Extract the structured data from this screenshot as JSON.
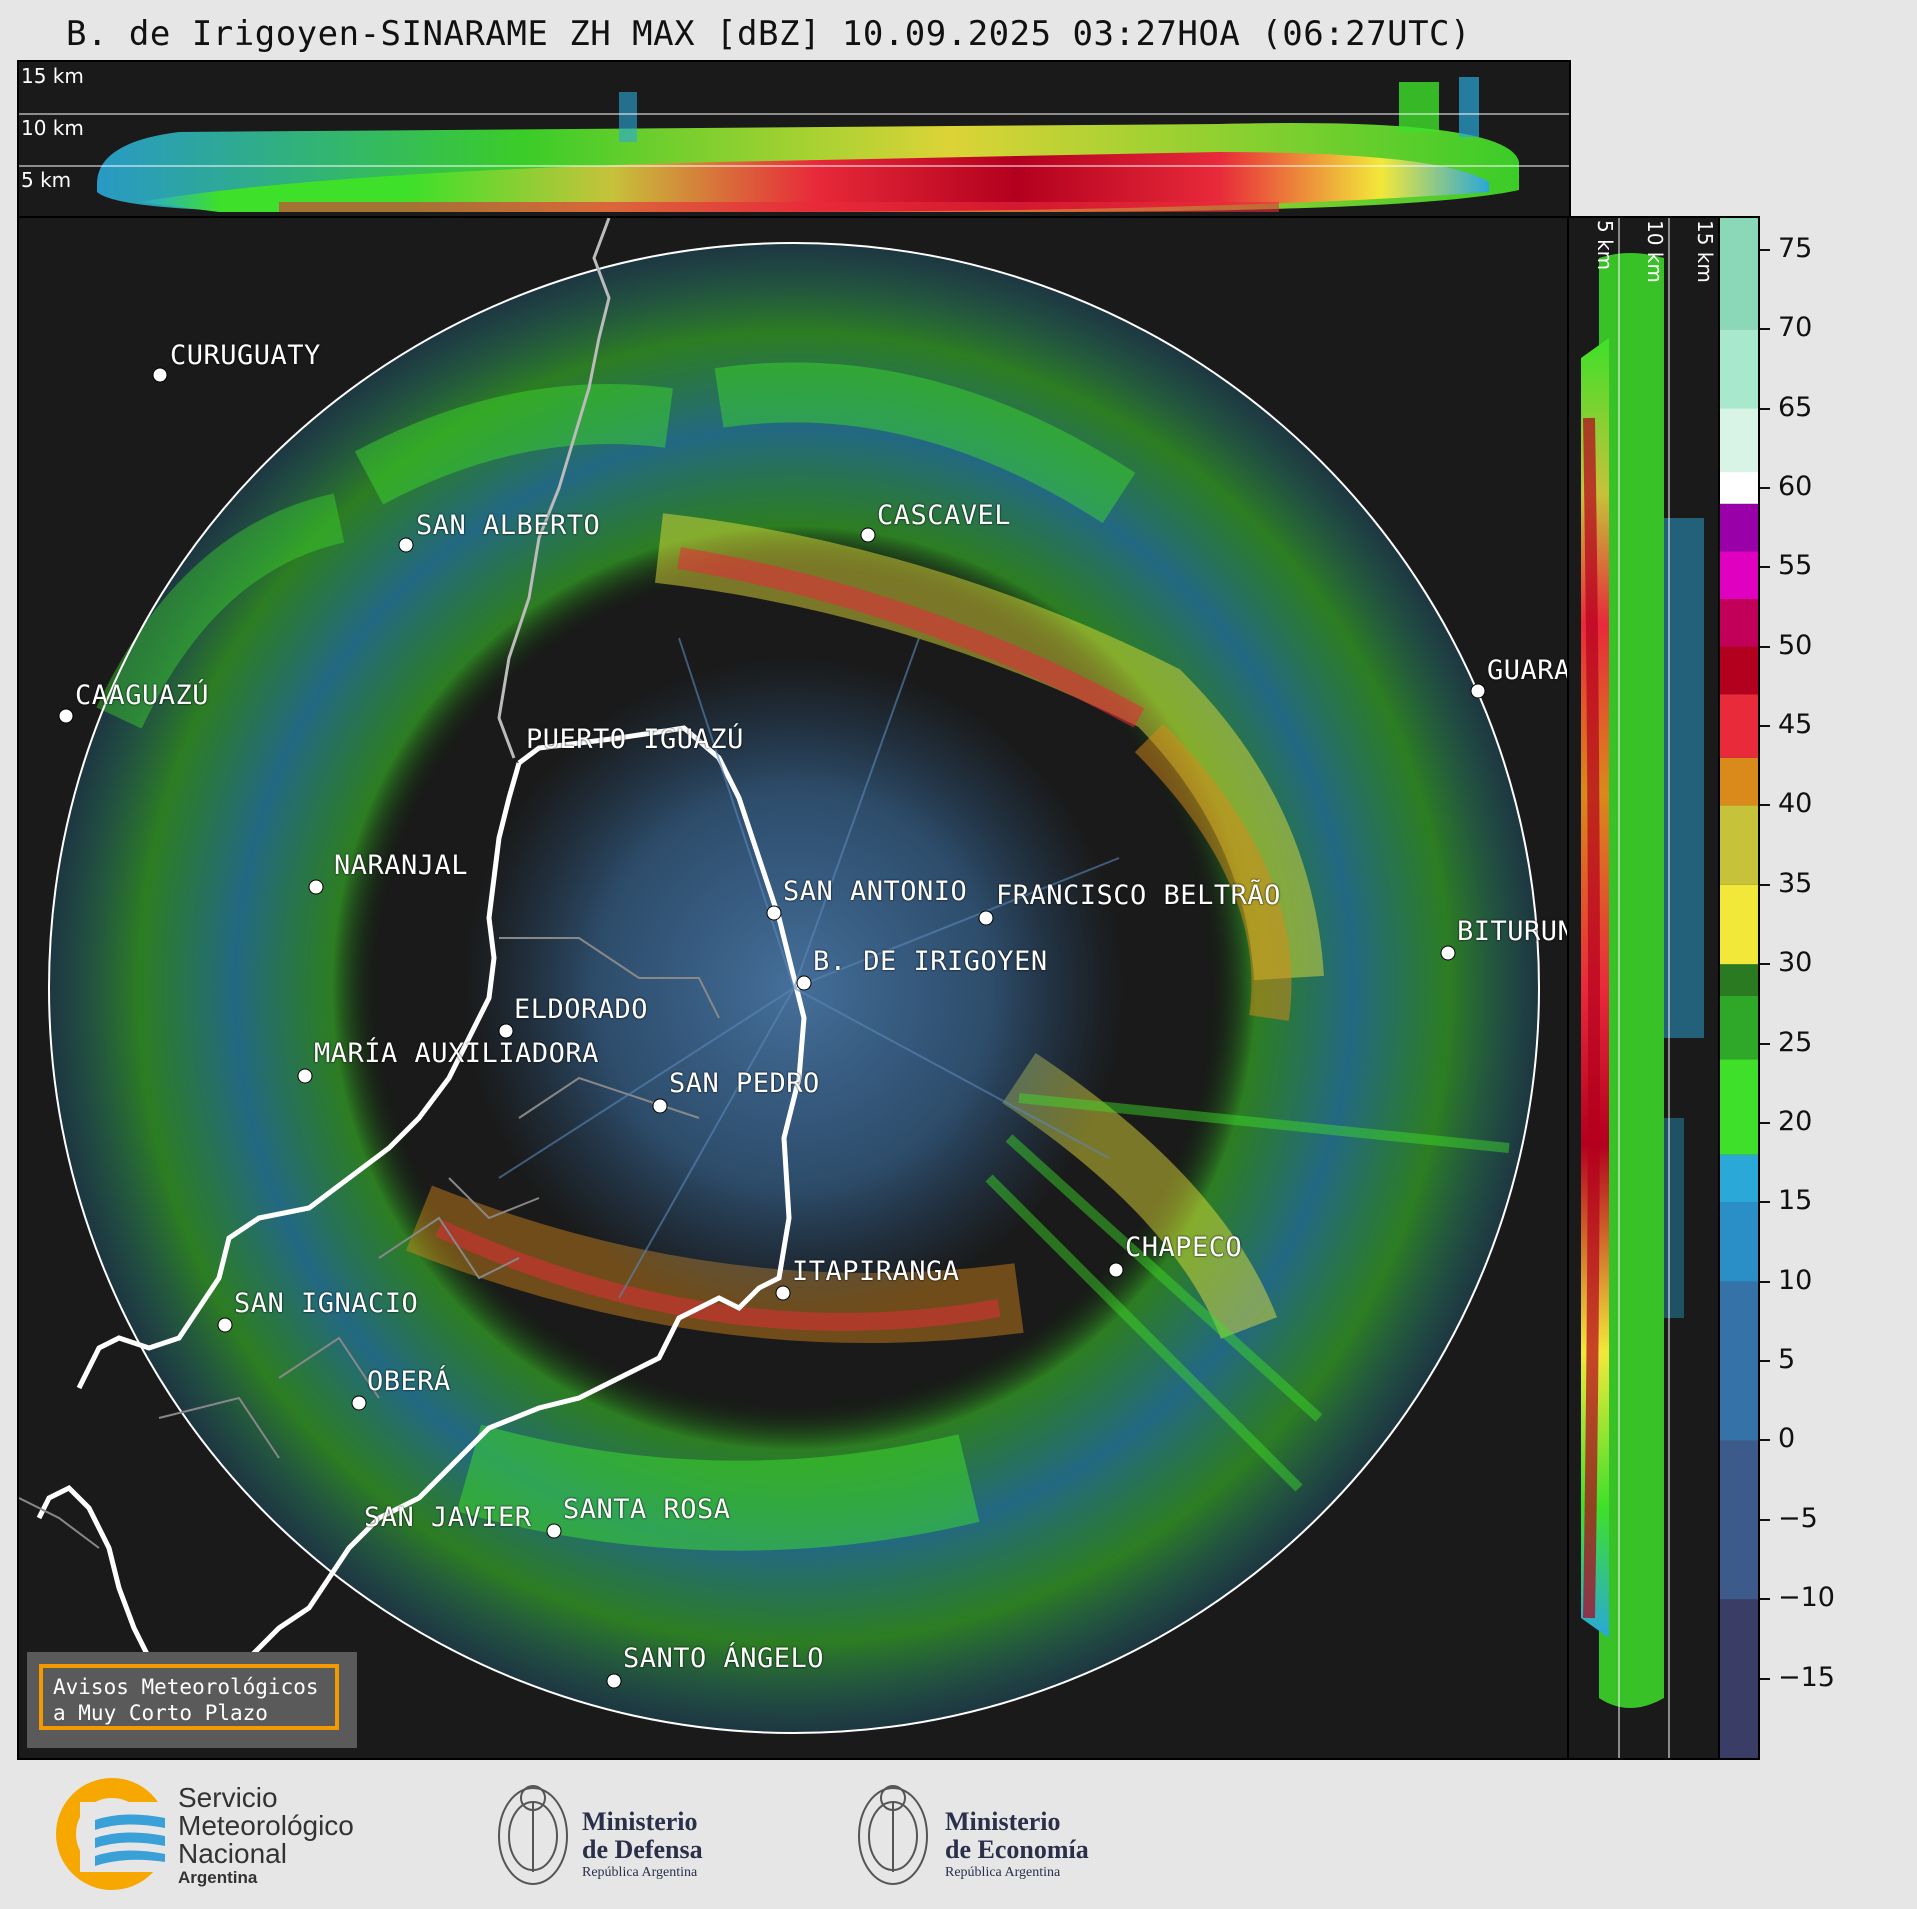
{
  "title": "B. de Irigoyen-SINARAME ZH MAX [dBZ] 10.09.2025 03:27HOA (06:27UTC)",
  "height_labels": [
    "15 km",
    "10 km",
    "5 km"
  ],
  "colorbar": {
    "unit": "dBZ",
    "ticks": [
      "75",
      "70",
      "65",
      "60",
      "55",
      "50",
      "45",
      "40",
      "35",
      "30",
      "25",
      "20",
      "15",
      "10",
      "5",
      "0",
      "−5",
      "−10",
      "−15"
    ],
    "min": -20,
    "max": 77,
    "stops": [
      {
        "from": -20,
        "color": "#3a3d66"
      },
      {
        "from": -10,
        "color": "#3c5a8a"
      },
      {
        "from": 0,
        "color": "#3572a8"
      },
      {
        "from": 10,
        "color": "#2a8fc6"
      },
      {
        "from": 15,
        "color": "#2aa8d8"
      },
      {
        "from": 18,
        "color": "#3ee02a"
      },
      {
        "from": 24,
        "color": "#2fa82a"
      },
      {
        "from": 28,
        "color": "#2a7a22"
      },
      {
        "from": 30,
        "color": "#f2e83a"
      },
      {
        "from": 35,
        "color": "#c6c23a"
      },
      {
        "from": 40,
        "color": "#d98a1a"
      },
      {
        "from": 43,
        "color": "#e82a3a"
      },
      {
        "from": 47,
        "color": "#b3001e"
      },
      {
        "from": 50,
        "color": "#c2005a"
      },
      {
        "from": 53,
        "color": "#e000c0"
      },
      {
        "from": 56,
        "color": "#9a00a8"
      },
      {
        "from": 59,
        "color": "#ffffff"
      },
      {
        "from": 61,
        "color": "#d8f4e6"
      },
      {
        "from": 65,
        "color": "#a8e8cc"
      },
      {
        "from": 70,
        "color": "#8ad8b8"
      }
    ]
  },
  "cities": [
    {
      "name": "CURUGUATY"
    },
    {
      "name": "SAN ALBERTO"
    },
    {
      "name": "CASCAVEL"
    },
    {
      "name": "CAAGUAZÚ"
    },
    {
      "name": "GUARAPUAVA"
    },
    {
      "name": "PUERTO IGUAZÚ"
    },
    {
      "name": "NARANJAL"
    },
    {
      "name": "SAN ANTONIO"
    },
    {
      "name": "FRANCISCO BELTRÃO"
    },
    {
      "name": "BITURUNA"
    },
    {
      "name": "B. DE IRIGOYEN"
    },
    {
      "name": "ELDORADO"
    },
    {
      "name": "MARÍA AUXILIADORA"
    },
    {
      "name": "SAN PEDRO"
    },
    {
      "name": "CHAPECO"
    },
    {
      "name": "ITAPIRANGA"
    },
    {
      "name": "SAN IGNACIO"
    },
    {
      "name": "OBERÁ"
    },
    {
      "name": "SAN JAVIER"
    },
    {
      "name": "SANTA ROSA"
    },
    {
      "name": "SANTO ÁNGELO"
    }
  ],
  "warning": {
    "line1": "Avisos Meteorológicos",
    "line2": "a Muy Corto Plazo"
  },
  "footer": {
    "smn": {
      "line1": "Servicio",
      "line2": "Meteorológico",
      "line3": "Nacional",
      "line4": "Argentina"
    },
    "defensa": {
      "line1": "Ministerio",
      "line2": "de Defensa",
      "line3": "República Argentina"
    },
    "economia": {
      "line1": "Ministerio",
      "line2": "de Economía",
      "line3": "República Argentina"
    }
  }
}
